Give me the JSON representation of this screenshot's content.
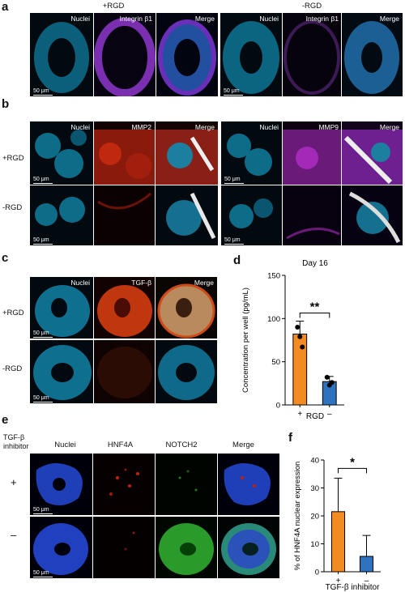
{
  "a": {
    "label": "a",
    "groups": [
      "+RGD",
      "-RGD"
    ],
    "channels": [
      "Nuclei",
      "Integrin β1",
      "Merge"
    ],
    "scalebar": "50 μm"
  },
  "b": {
    "label": "b",
    "rows": [
      "+RGD",
      "-RGD"
    ],
    "left_channels": [
      "Nuclei",
      "MMP2",
      "Merge"
    ],
    "right_channels": [
      "Nuclei",
      "MMP9",
      "Merge"
    ],
    "scalebar": "50 μm"
  },
  "c": {
    "label": "c",
    "rows": [
      "+RGD",
      "-RGD"
    ],
    "channels": [
      "Nuclei",
      "TGF-β",
      "Merge"
    ],
    "scalebar": "50 μm"
  },
  "e": {
    "label": "e",
    "corner": "TGF-β inhibitor",
    "rows": [
      "+",
      "–"
    ],
    "channels": [
      "Nuclei",
      "HNF4A",
      "NOTCH2",
      "Merge"
    ],
    "scalebar": "50 μm"
  },
  "chart_data": [
    {
      "panel": "d",
      "type": "bar",
      "title": "Day 16",
      "ylabel": "Concentration per well (pg/mL)",
      "xlabel": "RGD",
      "categories": [
        "+",
        "–"
      ],
      "values": [
        82,
        27
      ],
      "errors": [
        15,
        6
      ],
      "points": [
        [
          90,
          79,
          67
        ],
        [
          32,
          23,
          26
        ]
      ],
      "ylim": [
        0,
        150
      ],
      "yticks": [
        0,
        50,
        100,
        150
      ],
      "colors": [
        "#f28c22",
        "#2f73c0"
      ],
      "significance": "**"
    },
    {
      "panel": "f",
      "type": "bar",
      "title": "",
      "ylabel": "% of HNF4A nuclear expression",
      "xlabel": "TGF-β inhibitor",
      "categories": [
        "+",
        "–"
      ],
      "values": [
        21.5,
        5.5
      ],
      "errors": [
        12,
        7.5
      ],
      "ylim": [
        0,
        40
      ],
      "yticks": [
        0,
        10,
        20,
        30,
        40
      ],
      "colors": [
        "#f28c22",
        "#2f73c0"
      ],
      "significance": "*"
    }
  ]
}
